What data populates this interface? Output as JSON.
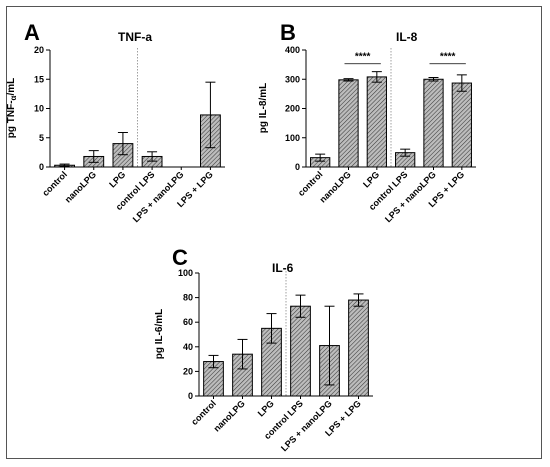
{
  "chart_data": [
    {
      "type": "bar",
      "panel": "A",
      "title": "TNF-a",
      "ylabel_pre": "pg TNF-",
      "ylabel_greek": "α",
      "ylabel_post": "/mL",
      "ylim": [
        0,
        20
      ],
      "yticks": [
        0,
        5,
        10,
        15,
        20
      ],
      "categories": [
        "control",
        "nanoLPG",
        "LPG",
        "control LPS",
        "LPS + nanoLPG",
        "LPS + LPG"
      ],
      "values": [
        0.3,
        1.8,
        4.0,
        1.8,
        0,
        8.9
      ],
      "errors": [
        0.2,
        1.0,
        1.9,
        0.8,
        0,
        5.6
      ],
      "divider_after": 3,
      "significance": []
    },
    {
      "type": "bar",
      "panel": "B",
      "title": "IL-8",
      "ylabel_pre": "pg IL-8/mL",
      "ylabel_greek": "",
      "ylabel_post": "",
      "ylim": [
        0,
        400
      ],
      "yticks": [
        0,
        100,
        200,
        300,
        400
      ],
      "categories": [
        "control",
        "nanoLPG",
        "LPG",
        "control LPS",
        "LPS + nanoLPG",
        "LPS + LPG"
      ],
      "values": [
        32,
        298,
        308,
        49,
        300,
        287
      ],
      "errors": [
        12,
        4,
        18,
        12,
        6,
        28
      ],
      "divider_after": 3,
      "significance": [
        {
          "from": 1,
          "to": 2,
          "label": "****",
          "y": 353
        },
        {
          "from": 4,
          "to": 5,
          "label": "****",
          "y": 353
        }
      ]
    },
    {
      "type": "bar",
      "panel": "C",
      "title": "IL-6",
      "ylabel_pre": "pg IL-6/mL",
      "ylabel_greek": "",
      "ylabel_post": "",
      "ylim": [
        0,
        100
      ],
      "yticks": [
        0,
        20,
        40,
        60,
        80,
        100
      ],
      "categories": [
        "control",
        "nanoLPG",
        "LPG",
        "control LPS",
        "LPS + nanoLPG",
        "LPS + LPG"
      ],
      "values": [
        28,
        34,
        55,
        73,
        41,
        78
      ],
      "errors": [
        5,
        12,
        12,
        9,
        32,
        5
      ],
      "divider_after": 3,
      "significance": []
    }
  ]
}
